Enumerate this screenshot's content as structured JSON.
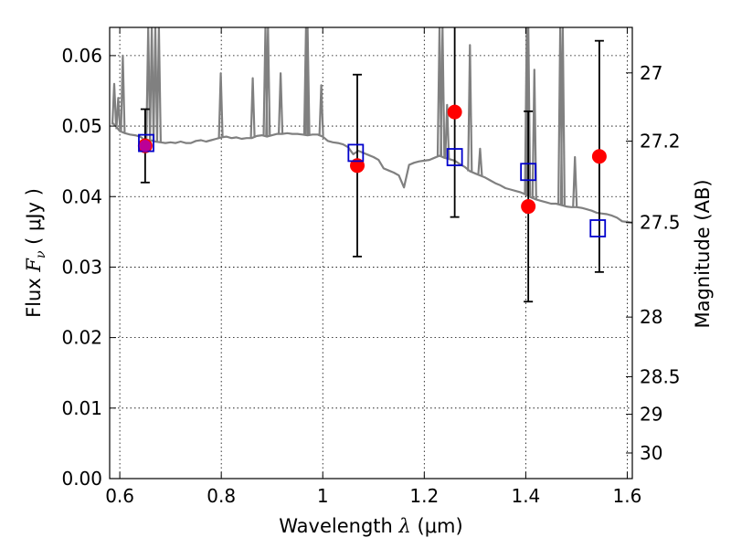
{
  "chart_data": {
    "type": "scatter",
    "title": "",
    "xlabel": "Wavelength  λ (μm)",
    "ylabel": "Flux  F_ν  ( μJy )",
    "ylabel_parts": {
      "prefix": "Flux  ",
      "symbol": "F",
      "subscript": "ν",
      "unit": "  ( μJy )"
    },
    "xlabel_parts": {
      "prefix": "Wavelength  ",
      "symbol": "λ",
      "unit": " (μm)"
    },
    "y2label": "Magnitude (AB)",
    "xlim": [
      0.58,
      1.61
    ],
    "ylim": [
      0.0,
      0.064
    ],
    "x_ticks": [
      0.6,
      0.8,
      1.0,
      1.2,
      1.4,
      1.6
    ],
    "x_tick_labels": [
      "0.6",
      "0.8",
      "1",
      "1.2",
      "1.4",
      "1.6"
    ],
    "y_ticks": [
      0.0,
      0.01,
      0.02,
      0.03,
      0.04,
      0.05,
      0.06
    ],
    "y_tick_labels": [
      "0.00",
      "0.01",
      "0.02",
      "0.03",
      "0.04",
      "0.05",
      "0.06"
    ],
    "y2_ticks": [
      27,
      27.2,
      27.5,
      28,
      28.5,
      29,
      30
    ],
    "y2_tick_labels": [
      "27",
      "27.2",
      "27.5",
      "28",
      "28.5",
      "29",
      "30"
    ],
    "grid": true,
    "colors": {
      "observed": "#ff0000",
      "model": "#0000cc",
      "sed": "#808080",
      "errorbar": "#000000"
    },
    "observed": [
      {
        "x": 0.65,
        "y": 0.0472,
        "yerr_low": 0.0052,
        "yerr_high": 0.0052
      },
      {
        "x": 1.068,
        "y": 0.0444,
        "yerr_low": 0.0129,
        "yerr_high": 0.0129
      },
      {
        "x": 1.26,
        "y": 0.052,
        "yerr_low": 0.0149,
        "yerr_high": 0.0149
      },
      {
        "x": 1.405,
        "y": 0.0386,
        "yerr_low": 0.0135,
        "yerr_high": 0.0135
      },
      {
        "x": 1.545,
        "y": 0.0457,
        "yerr_low": 0.0164,
        "yerr_high": 0.0164
      }
    ],
    "model": [
      {
        "x": 0.652,
        "y": 0.0476
      },
      {
        "x": 1.065,
        "y": 0.0462
      },
      {
        "x": 1.26,
        "y": 0.0456
      },
      {
        "x": 1.405,
        "y": 0.0435
      },
      {
        "x": 1.542,
        "y": 0.0355
      }
    ],
    "sed_spectrum": [
      [
        0.585,
        0.0505
      ],
      [
        0.592,
        0.05
      ],
      [
        0.6,
        0.0493
      ],
      [
        0.61,
        0.049
      ],
      [
        0.62,
        0.0488
      ],
      [
        0.63,
        0.0487
      ],
      [
        0.64,
        0.0485
      ],
      [
        0.65,
        0.048
      ],
      [
        0.66,
        0.048
      ],
      [
        0.67,
        0.0478
      ],
      [
        0.68,
        0.0477
      ],
      [
        0.69,
        0.0476
      ],
      [
        0.7,
        0.0477
      ],
      [
        0.71,
        0.0476
      ],
      [
        0.72,
        0.0478
      ],
      [
        0.73,
        0.0476
      ],
      [
        0.74,
        0.0476
      ],
      [
        0.75,
        0.0479
      ],
      [
        0.76,
        0.048
      ],
      [
        0.77,
        0.0478
      ],
      [
        0.78,
        0.048
      ],
      [
        0.79,
        0.0482
      ],
      [
        0.8,
        0.0484
      ],
      [
        0.81,
        0.0485
      ],
      [
        0.82,
        0.0483
      ],
      [
        0.83,
        0.0484
      ],
      [
        0.84,
        0.0482
      ],
      [
        0.85,
        0.0483
      ],
      [
        0.86,
        0.0483
      ],
      [
        0.87,
        0.0486
      ],
      [
        0.88,
        0.0487
      ],
      [
        0.89,
        0.0485
      ],
      [
        0.9,
        0.0487
      ],
      [
        0.91,
        0.0489
      ],
      [
        0.92,
        0.0489
      ],
      [
        0.93,
        0.049
      ],
      [
        0.94,
        0.0489
      ],
      [
        0.95,
        0.0489
      ],
      [
        0.96,
        0.0488
      ],
      [
        0.97,
        0.0487
      ],
      [
        0.98,
        0.0488
      ],
      [
        0.99,
        0.0488
      ],
      [
        1.0,
        0.0485
      ],
      [
        1.01,
        0.0479
      ],
      [
        1.02,
        0.0477
      ],
      [
        1.03,
        0.0476
      ],
      [
        1.04,
        0.0474
      ],
      [
        1.05,
        0.047
      ],
      [
        1.06,
        0.046
      ],
      [
        1.07,
        0.0465
      ],
      [
        1.08,
        0.0462
      ],
      [
        1.09,
        0.0459
      ],
      [
        1.1,
        0.0456
      ],
      [
        1.11,
        0.0452
      ],
      [
        1.12,
        0.044
      ],
      [
        1.13,
        0.0437
      ],
      [
        1.14,
        0.0434
      ],
      [
        1.15,
        0.043
      ],
      [
        1.16,
        0.0413
      ],
      [
        1.17,
        0.0445
      ],
      [
        1.18,
        0.0448
      ],
      [
        1.19,
        0.045
      ],
      [
        1.2,
        0.0451
      ],
      [
        1.21,
        0.0452
      ],
      [
        1.22,
        0.0455
      ],
      [
        1.23,
        0.0458
      ],
      [
        1.24,
        0.0455
      ],
      [
        1.25,
        0.0453
      ],
      [
        1.26,
        0.0451
      ],
      [
        1.27,
        0.0446
      ],
      [
        1.28,
        0.0442
      ],
      [
        1.29,
        0.0436
      ],
      [
        1.3,
        0.0433
      ],
      [
        1.31,
        0.043
      ],
      [
        1.32,
        0.0427
      ],
      [
        1.33,
        0.0423
      ],
      [
        1.34,
        0.0419
      ],
      [
        1.35,
        0.0416
      ],
      [
        1.36,
        0.0412
      ],
      [
        1.37,
        0.041
      ],
      [
        1.38,
        0.0408
      ],
      [
        1.39,
        0.0406
      ],
      [
        1.4,
        0.0403
      ],
      [
        1.41,
        0.0399
      ],
      [
        1.42,
        0.0396
      ],
      [
        1.43,
        0.0394
      ],
      [
        1.44,
        0.0392
      ],
      [
        1.45,
        0.039
      ],
      [
        1.46,
        0.039
      ],
      [
        1.47,
        0.0388
      ],
      [
        1.48,
        0.0386
      ],
      [
        1.49,
        0.0385
      ],
      [
        1.5,
        0.0385
      ],
      [
        1.51,
        0.0384
      ],
      [
        1.52,
        0.0382
      ],
      [
        1.53,
        0.038
      ],
      [
        1.54,
        0.0377
      ],
      [
        1.55,
        0.0376
      ],
      [
        1.56,
        0.0375
      ],
      [
        1.57,
        0.0373
      ],
      [
        1.58,
        0.037
      ],
      [
        1.59,
        0.0365
      ],
      [
        1.6,
        0.0364
      ],
      [
        1.61,
        0.0363
      ]
    ],
    "sed_emission_lines": [
      [
        0.589,
        0.056
      ],
      [
        0.597,
        0.054
      ],
      [
        0.606,
        0.06
      ],
      [
        0.656,
        0.064
      ],
      [
        0.663,
        0.064
      ],
      [
        0.67,
        0.064
      ],
      [
        0.677,
        0.064
      ],
      [
        0.799,
        0.0575
      ],
      [
        0.862,
        0.0568
      ],
      [
        0.887,
        0.064
      ],
      [
        0.892,
        0.064
      ],
      [
        0.917,
        0.0575
      ],
      [
        0.967,
        0.064
      ],
      [
        0.97,
        0.064
      ],
      [
        0.997,
        0.0558
      ],
      [
        1.23,
        0.064
      ],
      [
        1.236,
        0.064
      ],
      [
        1.245,
        0.053
      ],
      [
        1.29,
        0.0615
      ],
      [
        1.31,
        0.0468
      ],
      [
        1.402,
        0.064
      ],
      [
        1.405,
        0.064
      ],
      [
        1.417,
        0.058
      ],
      [
        1.468,
        0.064
      ],
      [
        1.473,
        0.064
      ],
      [
        1.497,
        0.0456
      ]
    ]
  }
}
